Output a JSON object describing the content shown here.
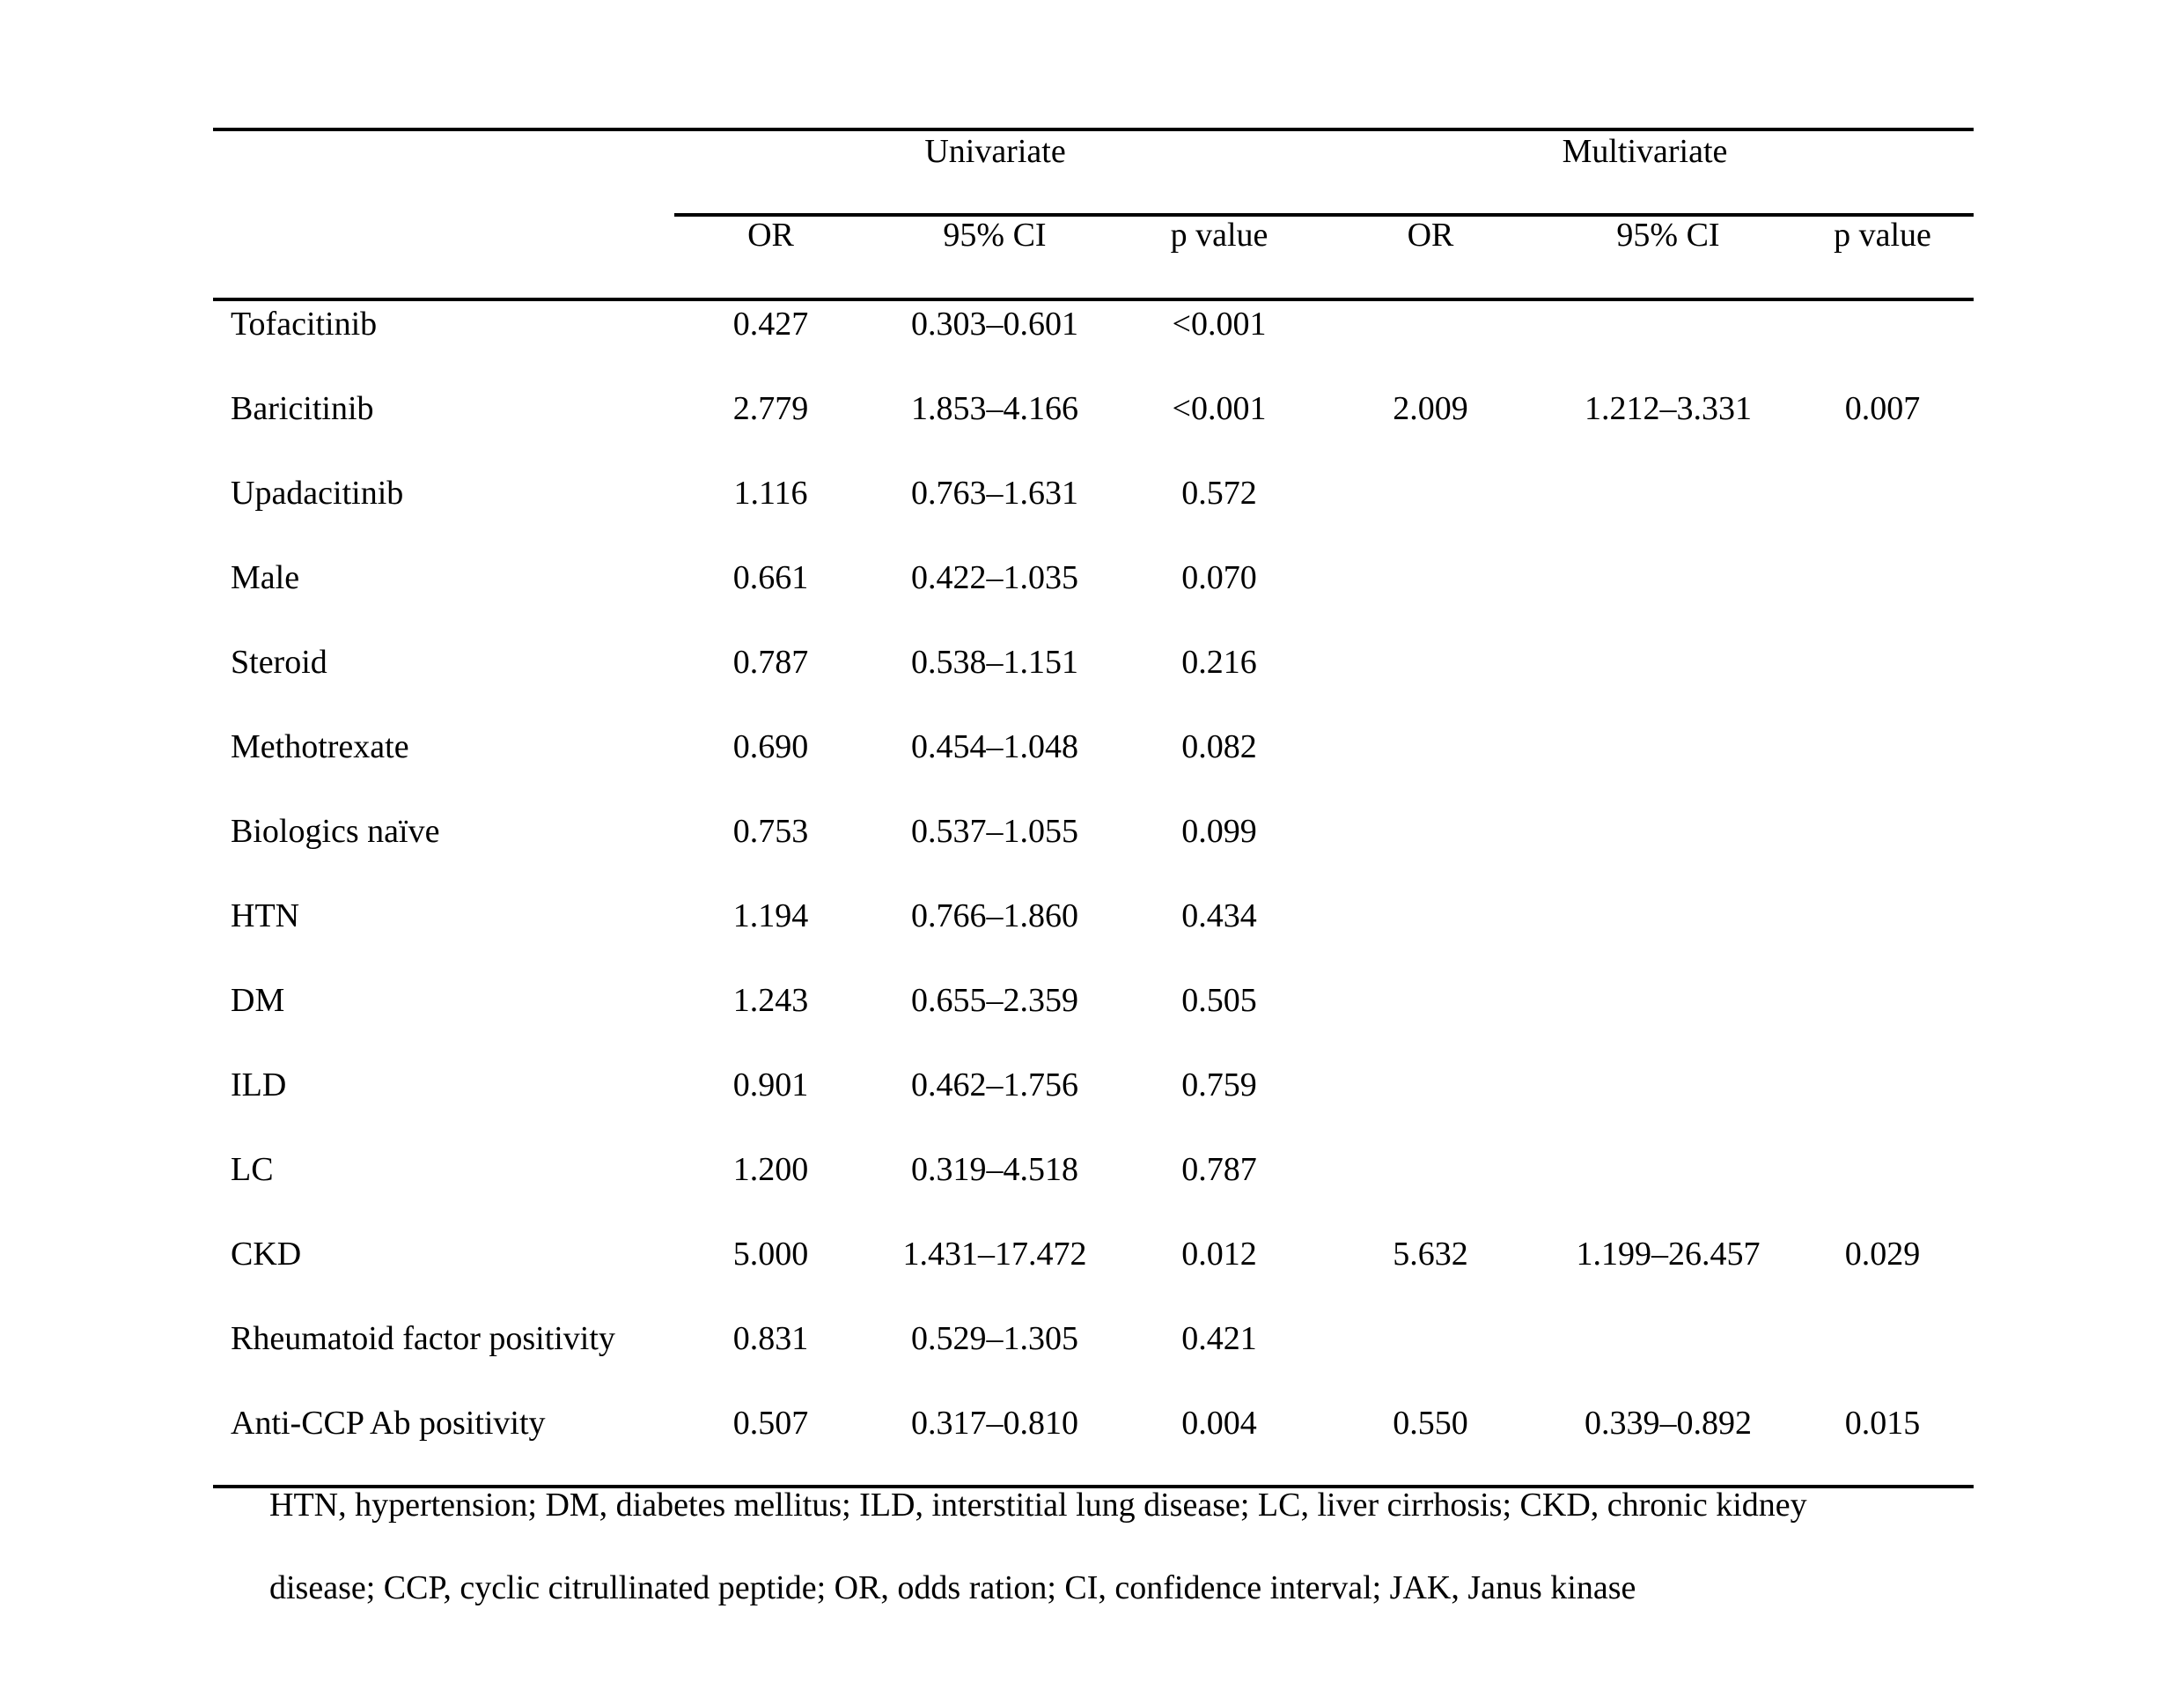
{
  "table": {
    "group_headers": {
      "univariate": "Univariate",
      "multivariate": "Multivariate"
    },
    "column_headers": {
      "u_or": "OR",
      "u_ci": "95% CI",
      "u_p": "p value",
      "m_or": "OR",
      "m_ci": "95% CI",
      "m_p": "p value"
    },
    "rows": [
      {
        "label": "Tofacitinib",
        "u_or": "0.427",
        "u_ci": "0.303–0.601",
        "u_p": "<0.001",
        "m_or": "",
        "m_ci": "",
        "m_p": ""
      },
      {
        "label": "Baricitinib",
        "u_or": "2.779",
        "u_ci": "1.853–4.166",
        "u_p": "<0.001",
        "m_or": "2.009",
        "m_ci": "1.212–3.331",
        "m_p": "0.007"
      },
      {
        "label": "Upadacitinib",
        "u_or": "1.116",
        "u_ci": "0.763–1.631",
        "u_p": "0.572",
        "m_or": "",
        "m_ci": "",
        "m_p": ""
      },
      {
        "label": "Male",
        "u_or": "0.661",
        "u_ci": "0.422–1.035",
        "u_p": "0.070",
        "m_or": "",
        "m_ci": "",
        "m_p": ""
      },
      {
        "label": "Steroid",
        "u_or": "0.787",
        "u_ci": "0.538–1.151",
        "u_p": "0.216",
        "m_or": "",
        "m_ci": "",
        "m_p": ""
      },
      {
        "label": "Methotrexate",
        "u_or": "0.690",
        "u_ci": "0.454–1.048",
        "u_p": "0.082",
        "m_or": "",
        "m_ci": "",
        "m_p": ""
      },
      {
        "label": "Biologics naïve",
        "u_or": "0.753",
        "u_ci": "0.537–1.055",
        "u_p": "0.099",
        "m_or": "",
        "m_ci": "",
        "m_p": ""
      },
      {
        "label": "HTN",
        "u_or": "1.194",
        "u_ci": "0.766–1.860",
        "u_p": "0.434",
        "m_or": "",
        "m_ci": "",
        "m_p": ""
      },
      {
        "label": "DM",
        "u_or": "1.243",
        "u_ci": "0.655–2.359",
        "u_p": "0.505",
        "m_or": "",
        "m_ci": "",
        "m_p": ""
      },
      {
        "label": "ILD",
        "u_or": "0.901",
        "u_ci": "0.462–1.756",
        "u_p": "0.759",
        "m_or": "",
        "m_ci": "",
        "m_p": ""
      },
      {
        "label": "LC",
        "u_or": "1.200",
        "u_ci": "0.319–4.518",
        "u_p": "0.787",
        "m_or": "",
        "m_ci": "",
        "m_p": ""
      },
      {
        "label": "CKD",
        "u_or": "5.000",
        "u_ci": "1.431–17.472",
        "u_p": "0.012",
        "m_or": "5.632",
        "m_ci": "1.199–26.457",
        "m_p": "0.029"
      },
      {
        "label": "Rheumatoid factor positivity",
        "u_or": "0.831",
        "u_ci": "0.529–1.305",
        "u_p": "0.421",
        "m_or": "",
        "m_ci": "",
        "m_p": ""
      },
      {
        "label": "Anti-CCP Ab positivity",
        "u_or": "0.507",
        "u_ci": "0.317–0.810",
        "u_p": "0.004",
        "m_or": "0.550",
        "m_ci": "0.339–0.892",
        "m_p": "0.015"
      }
    ],
    "footnote_lines": [
      "HTN, hypertension; DM, diabetes mellitus; ILD, interstitial lung disease; LC, liver cirrhosis; CKD, chronic kidney",
      "disease; CCP, cyclic citrullinated peptide; OR, odds ration; CI, confidence interval; JAK, Janus kinase"
    ]
  }
}
